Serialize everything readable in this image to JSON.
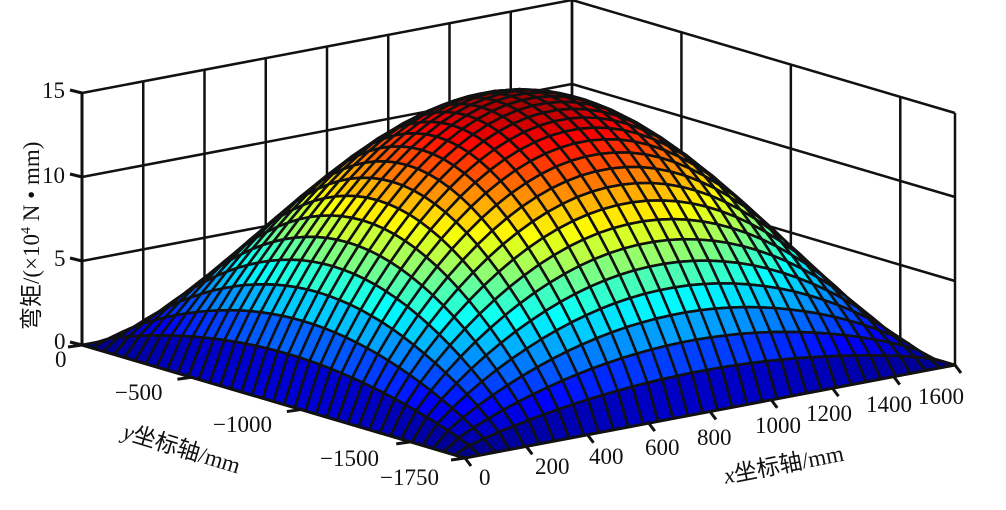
{
  "chart_data": {
    "type": "surface3d",
    "title": "",
    "xlabel": "x坐标轴/mm",
    "ylabel": "y坐标轴/mm",
    "zlabel": "弯矩/(×10^4 N • mm)",
    "xlim": [
      0,
      1600
    ],
    "ylim": [
      -1750,
      0
    ],
    "zlim": [
      0,
      15
    ],
    "x_ticks": [
      0,
      200,
      400,
      600,
      800,
      1000,
      1200,
      1400,
      1600
    ],
    "y_ticks": [
      0,
      -500,
      -1000,
      -1500,
      -1750
    ],
    "z_ticks": [
      0,
      5,
      10,
      15
    ],
    "grid": true,
    "colormap": "jet",
    "surface": {
      "description": "Bending moment dome over rectangular plate; zero at edges, peak near center-back",
      "peak_value": 15.5,
      "peak_location": {
        "x": 800,
        "y": -875
      },
      "edge_value": 0,
      "grid_x_count": 33,
      "grid_y_count": 36
    }
  },
  "axes": {
    "z_label_prefix": "弯矩/(×10",
    "z_label_sup": "4",
    "z_label_suffix": " N • mm)",
    "x_label_var": "x",
    "x_label_rest": "坐标轴/mm",
    "y_label_var": "y",
    "y_label_rest": "坐标轴/mm",
    "z_tick_labels": [
      "0",
      "5",
      "10",
      "15"
    ],
    "y_tick_labels": [
      "0",
      "−500",
      "−1000",
      "−1500",
      "−1750"
    ],
    "x_tick_labels": [
      "0",
      "200",
      "400",
      "600",
      "800",
      "1000",
      "1200",
      "1400",
      "1600"
    ]
  },
  "colors": {
    "edge": "#111111",
    "axis": "#111111"
  }
}
